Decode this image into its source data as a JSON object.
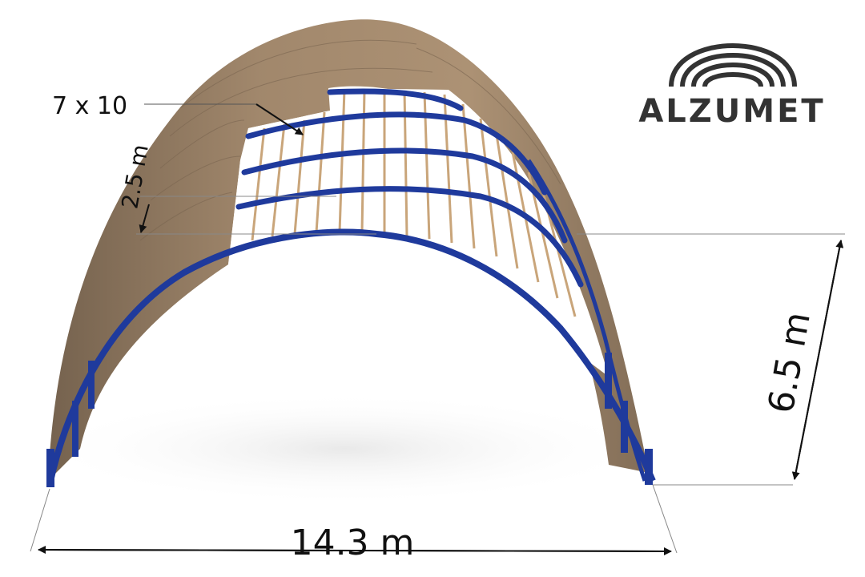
{
  "drawing": {
    "panel_label": "7 x 10",
    "spacing_label": "2.5 m",
    "height_label": "6.5 m",
    "width_label": "14.3 m"
  },
  "logo": {
    "text": "ALZUMET",
    "icon": "arches-icon"
  },
  "colors": {
    "frame": "#1f3a9c",
    "roof_sheet": "#8a7158",
    "purlin": "#c9a57a",
    "dimension": "#111111",
    "logo": "#333333"
  }
}
